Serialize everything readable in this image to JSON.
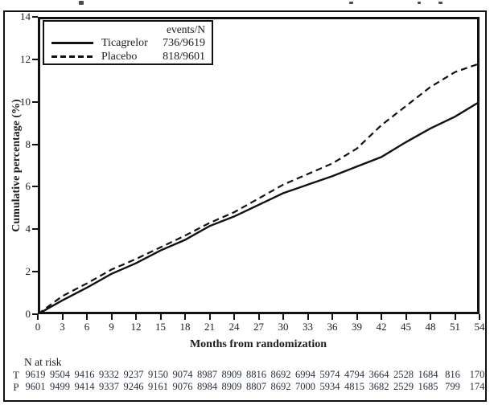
{
  "chart_data": {
    "type": "line",
    "title": "",
    "xlabel": "Months from randomization",
    "ylabel": "Cumulative percentage (%)",
    "xlim": [
      0,
      54
    ],
    "ylim": [
      0,
      14
    ],
    "x_ticks": [
      0,
      3,
      6,
      9,
      12,
      15,
      18,
      21,
      24,
      27,
      30,
      33,
      36,
      39,
      42,
      45,
      48,
      51,
      54
    ],
    "y_ticks": [
      0,
      2,
      4,
      6,
      8,
      10,
      12,
      14
    ],
    "grid": false,
    "legend_header": "events/N",
    "legend_position": "top-left",
    "x": [
      0,
      3,
      6,
      9,
      12,
      15,
      18,
      21,
      24,
      27,
      30,
      33,
      36,
      39,
      42,
      45,
      48,
      51,
      54
    ],
    "series": [
      {
        "name": "Ticagrelor",
        "style": "solid",
        "events_n": "736/9619",
        "values": [
          0,
          0.65,
          1.25,
          1.9,
          2.4,
          3.0,
          3.5,
          4.15,
          4.6,
          5.15,
          5.7,
          6.1,
          6.5,
          6.95,
          7.4,
          8.1,
          8.75,
          9.3,
          10.0
        ]
      },
      {
        "name": "Placebo",
        "style": "dashed",
        "events_n": "818/9601",
        "values": [
          0,
          0.85,
          1.45,
          2.1,
          2.6,
          3.15,
          3.7,
          4.3,
          4.8,
          5.45,
          6.1,
          6.6,
          7.1,
          7.8,
          8.9,
          9.8,
          10.7,
          11.4,
          11.8
        ]
      }
    ]
  },
  "risk_table": {
    "title": "N at risk",
    "rows": [
      {
        "label": "T",
        "counts": [
          "9619",
          "9504",
          "9416",
          "9332",
          "9237",
          "9150",
          "9074",
          "8987",
          "8909",
          "8816",
          "8692",
          "6994",
          "5974",
          "4794",
          "3664",
          "2528",
          "1684",
          "816",
          "170"
        ]
      },
      {
        "label": "P",
        "counts": [
          "9601",
          "9499",
          "9414",
          "9337",
          "9246",
          "9161",
          "9076",
          "8984",
          "8909",
          "8807",
          "8692",
          "7000",
          "5934",
          "4815",
          "3682",
          "2529",
          "1685",
          "799",
          "174"
        ]
      }
    ]
  },
  "colors": {
    "line": "#111111",
    "text": "#1c1c1c",
    "risk_text": "#27313d",
    "background": "#ffffff"
  }
}
